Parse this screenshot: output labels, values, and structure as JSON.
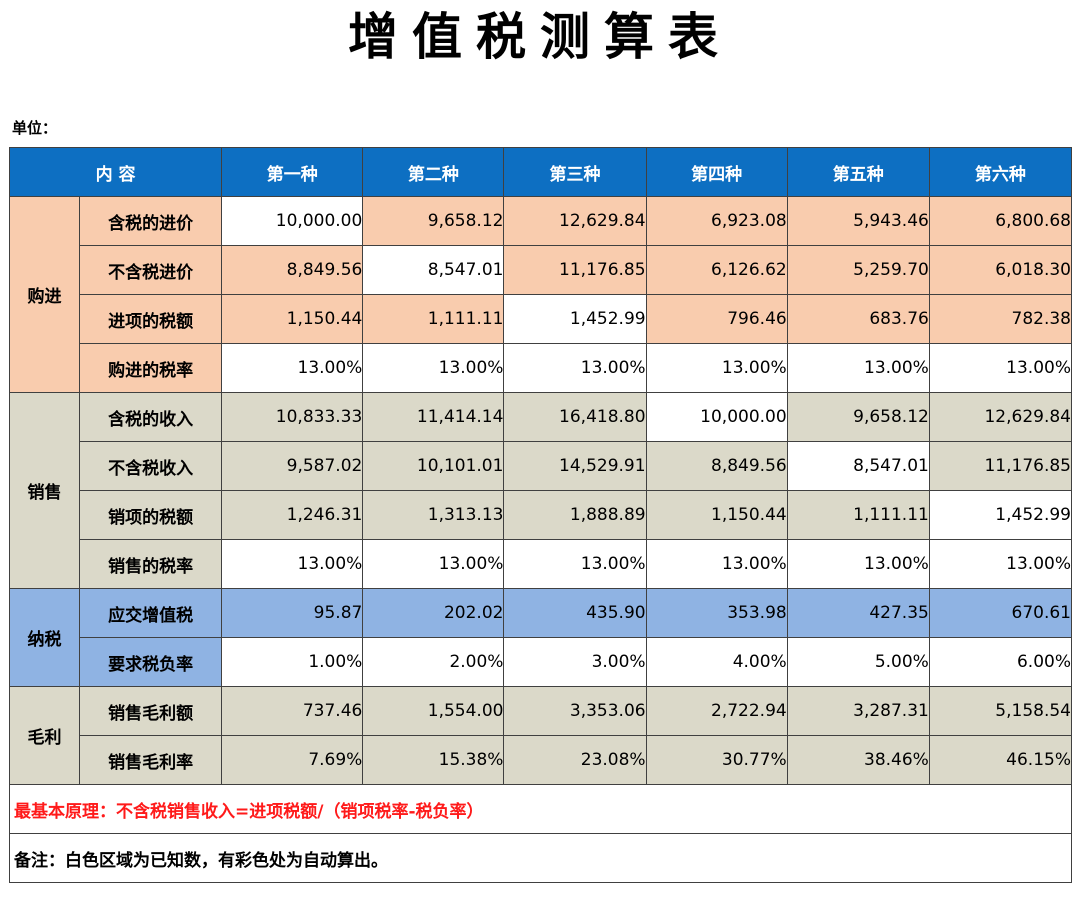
{
  "title": "增值税测算表",
  "unit_label": "单位：",
  "header": {
    "content": "内  容",
    "columns": [
      "第一种",
      "第二种",
      "第三种",
      "第四种",
      "第五种",
      "第六种"
    ]
  },
  "groups": [
    {
      "name": "购进",
      "rows": [
        {
          "label": "含税的进价",
          "values": [
            "10,000.00",
            "9,658.12",
            "12,629.84",
            "6,923.08",
            "5,943.46",
            "6,800.68"
          ]
        },
        {
          "label": "不含税进价",
          "values": [
            "8,849.56",
            "8,547.01",
            "11,176.85",
            "6,126.62",
            "5,259.70",
            "6,018.30"
          ]
        },
        {
          "label": "进项的税额",
          "values": [
            "1,150.44",
            "1,111.11",
            "1,452.99",
            "796.46",
            "683.76",
            "782.38"
          ]
        },
        {
          "label": "购进的税率",
          "values": [
            "13.00%",
            "13.00%",
            "13.00%",
            "13.00%",
            "13.00%",
            "13.00%"
          ]
        }
      ]
    },
    {
      "name": "销售",
      "rows": [
        {
          "label": "含税的收入",
          "values": [
            "10,833.33",
            "11,414.14",
            "16,418.80",
            "10,000.00",
            "9,658.12",
            "12,629.84"
          ]
        },
        {
          "label": "不含税收入",
          "values": [
            "9,587.02",
            "10,101.01",
            "14,529.91",
            "8,849.56",
            "8,547.01",
            "11,176.85"
          ]
        },
        {
          "label": "销项的税额",
          "values": [
            "1,246.31",
            "1,313.13",
            "1,888.89",
            "1,150.44",
            "1,111.11",
            "1,452.99"
          ]
        },
        {
          "label": "销售的税率",
          "values": [
            "13.00%",
            "13.00%",
            "13.00%",
            "13.00%",
            "13.00%",
            "13.00%"
          ]
        }
      ]
    },
    {
      "name": "纳税",
      "rows": [
        {
          "label": "应交增值税",
          "values": [
            "95.87",
            "202.02",
            "435.90",
            "353.98",
            "427.35",
            "670.61"
          ]
        },
        {
          "label": "要求税负率",
          "values": [
            "1.00%",
            "2.00%",
            "3.00%",
            "4.00%",
            "5.00%",
            "6.00%"
          ]
        }
      ]
    },
    {
      "name": "毛利",
      "rows": [
        {
          "label": "销售毛利额",
          "values": [
            "737.46",
            "1,554.00",
            "3,353.06",
            "2,722.94",
            "3,287.31",
            "5,158.54"
          ]
        },
        {
          "label": "销售毛利率",
          "values": [
            "7.69%",
            "15.38%",
            "23.08%",
            "30.77%",
            "38.46%",
            "46.15%"
          ]
        }
      ]
    }
  ],
  "colors": {
    "header": "#0d6fc2",
    "purchase": "#f9ccae",
    "sales": "#dbd9c9",
    "tax": "#8fb3e3",
    "known": "#ffffff",
    "principle_text": "#ff1a1a"
  },
  "notes": {
    "principle": "最基本原理：不含税销售收入=进项税额/（销项税率-税负率）",
    "remark": "备注：白色区域为已知数，有彩色处为自动算出。"
  }
}
